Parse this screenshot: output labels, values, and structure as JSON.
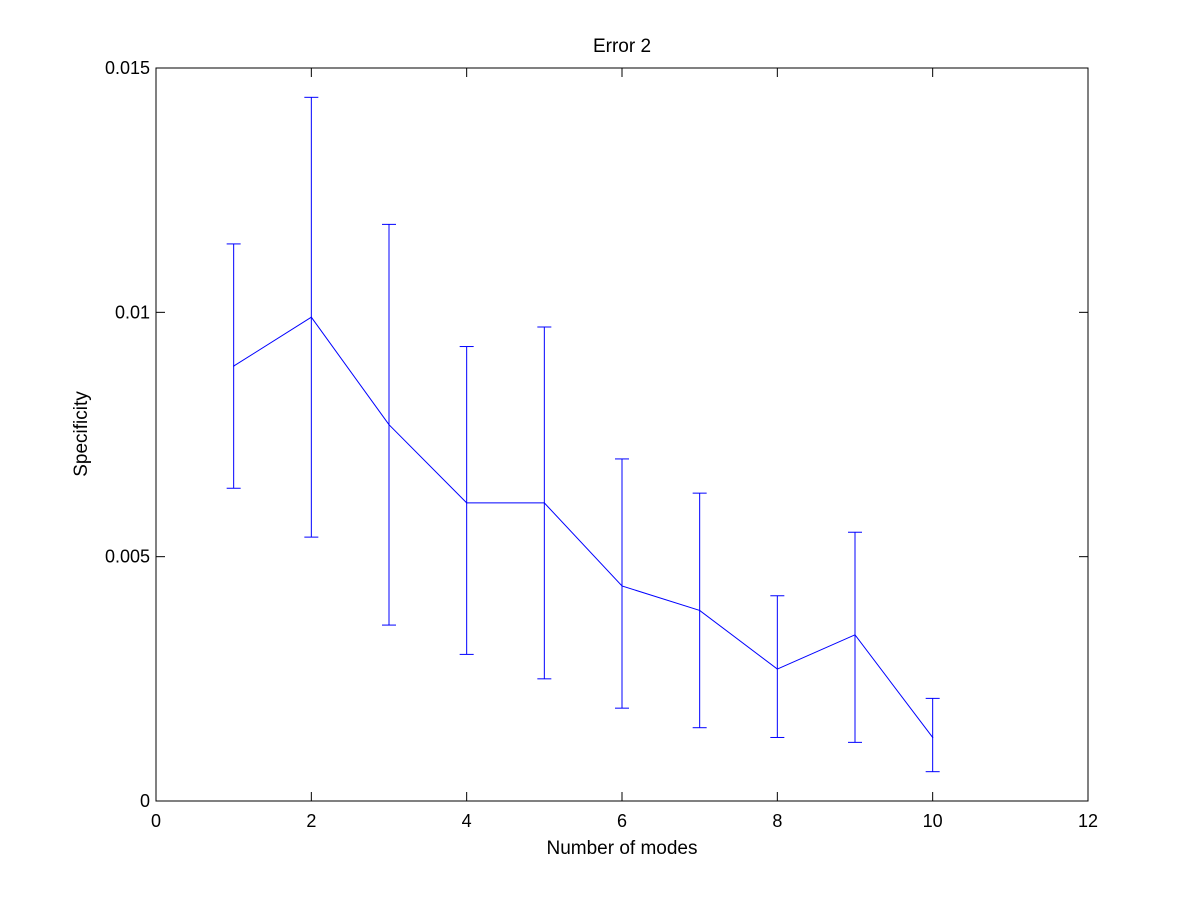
{
  "chart_data": {
    "type": "line",
    "title": "Error 2",
    "xlabel": "Number of modes",
    "ylabel": "Specificity",
    "xlim": [
      0,
      12
    ],
    "ylim": [
      0,
      0.015
    ],
    "xticks": [
      0,
      2,
      4,
      6,
      8,
      10,
      12
    ],
    "xtick_labels": [
      "0",
      "2",
      "4",
      "6",
      "8",
      "10",
      "12"
    ],
    "yticks": [
      0,
      0.005,
      0.01,
      0.015
    ],
    "ytick_labels": [
      "0",
      "0.005",
      "0.01",
      "0.015"
    ],
    "grid": false,
    "series": [
      {
        "color": "#0000ff",
        "x": [
          1,
          2,
          3,
          4,
          5,
          6,
          7,
          8,
          9,
          10
        ],
        "y": [
          0.0089,
          0.0099,
          0.0077,
          0.0061,
          0.0061,
          0.0044,
          0.0039,
          0.0027,
          0.0034,
          0.0013
        ],
        "error_lower": [
          0.0064,
          0.0054,
          0.0036,
          0.003,
          0.0025,
          0.0019,
          0.0015,
          0.0013,
          0.0012,
          0.0006
        ],
        "error_upper": [
          0.0114,
          0.0144,
          0.0118,
          0.0093,
          0.0097,
          0.007,
          0.0063,
          0.0042,
          0.0055,
          0.0021
        ]
      }
    ]
  }
}
